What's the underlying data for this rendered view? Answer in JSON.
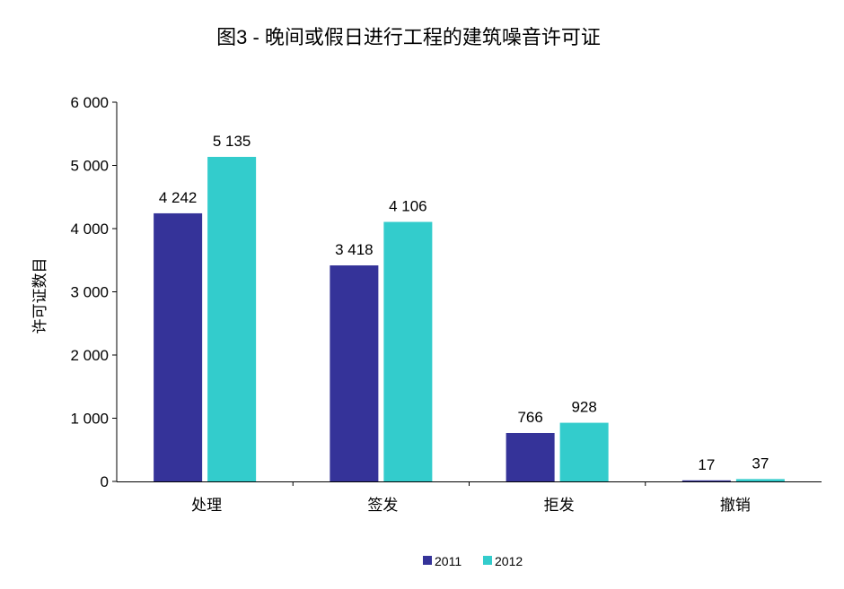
{
  "chart_data": {
    "type": "bar",
    "title": "图3 - 晚间或假日进行工程的建筑噪音许可证",
    "xlabel": "",
    "ylabel": "许可证数目",
    "categories": [
      "处理",
      "签发",
      "拒发",
      "撤销"
    ],
    "series": [
      {
        "name": "2011",
        "values": [
          4242,
          3418,
          766,
          17
        ],
        "labels": [
          "4 242",
          "3 418",
          "766",
          "17"
        ],
        "color": "#353399"
      },
      {
        "name": "2012",
        "values": [
          5135,
          4106,
          928,
          37
        ],
        "labels": [
          "5 135",
          "4 106",
          "928",
          "37"
        ],
        "color": "#33CCCC"
      }
    ],
    "ylim": [
      0,
      6000
    ],
    "yticks": [
      0,
      1000,
      2000,
      3000,
      4000,
      5000,
      6000
    ],
    "ytick_labels": [
      "0",
      "1 000",
      "2 000",
      "3 000",
      "4 000",
      "5 000",
      "6 000"
    ],
    "grid": false,
    "legend": "bottom"
  }
}
